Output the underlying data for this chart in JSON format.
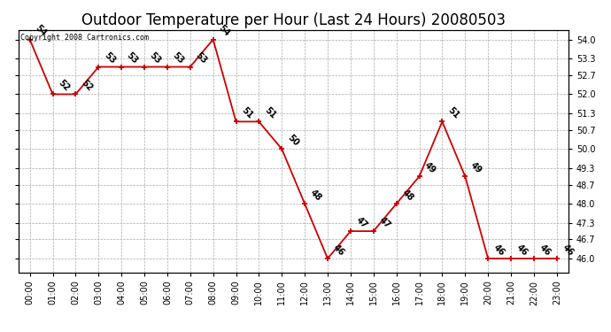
{
  "title": "Outdoor Temperature per Hour (Last 24 Hours) 20080503",
  "copyright": "Copyright 2008 Cartronics.com",
  "hours": [
    "00:00",
    "01:00",
    "02:00",
    "03:00",
    "04:00",
    "05:00",
    "06:00",
    "07:00",
    "08:00",
    "09:00",
    "10:00",
    "11:00",
    "12:00",
    "13:00",
    "14:00",
    "15:00",
    "16:00",
    "17:00",
    "18:00",
    "19:00",
    "20:00",
    "21:00",
    "22:00",
    "23:00"
  ],
  "temps": [
    54,
    52,
    52,
    53,
    53,
    53,
    53,
    53,
    54,
    51,
    51,
    50,
    48,
    46,
    47,
    47,
    48,
    49,
    51,
    49,
    46,
    46,
    46,
    46
  ],
  "line_color": "#cc0000",
  "marker_color": "#cc0000",
  "bg_color": "#ffffff",
  "grid_color": "#aaaaaa",
  "ylim_min": 45.5,
  "ylim_max": 54.35,
  "yticks": [
    46.0,
    46.7,
    47.3,
    48.0,
    48.7,
    49.3,
    50.0,
    50.7,
    51.3,
    52.0,
    52.7,
    53.3,
    54.0
  ],
  "title_fontsize": 12,
  "label_fontsize": 7,
  "tick_fontsize": 7
}
